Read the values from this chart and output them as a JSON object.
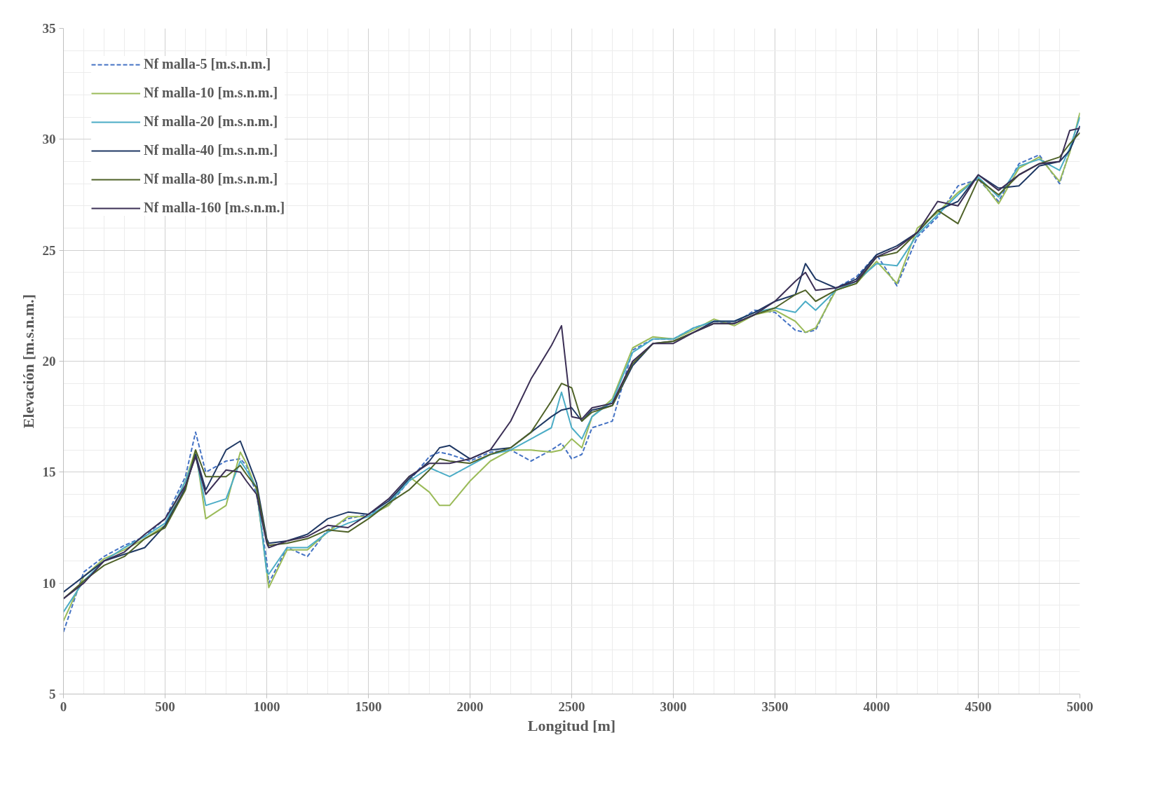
{
  "chart_data": {
    "type": "line",
    "xlabel": "Longitud [m]",
    "ylabel": "Elevación [m.s.n.m.]",
    "x": [
      0,
      100,
      200,
      300,
      400,
      500,
      600,
      650,
      700,
      800,
      870,
      900,
      950,
      1000,
      1010,
      1100,
      1200,
      1300,
      1400,
      1500,
      1600,
      1700,
      1800,
      1850,
      1900,
      2000,
      2100,
      2200,
      2300,
      2400,
      2450,
      2500,
      2550,
      2600,
      2700,
      2800,
      2900,
      3000,
      3100,
      3200,
      3300,
      3400,
      3500,
      3600,
      3650,
      3700,
      3800,
      3900,
      4000,
      4100,
      4200,
      4300,
      4400,
      4500,
      4600,
      4700,
      4800,
      4900,
      4950,
      5000
    ],
    "xlim": [
      0,
      5000
    ],
    "xticks": [
      0,
      500,
      1000,
      1500,
      2000,
      2500,
      3000,
      3500,
      4000,
      4500,
      5000
    ],
    "ylim": [
      5,
      35
    ],
    "yticks": [
      5,
      10,
      15,
      20,
      25,
      30,
      35
    ],
    "grid": true,
    "legend": "top left",
    "marker": "none",
    "series": [
      {
        "name": "Nf malla-5 [m.s.n.m.]",
        "color": "#4472c4",
        "line_style": "dashed",
        "values": [
          7.8,
          10.5,
          11.2,
          11.7,
          12.1,
          12.9,
          14.8,
          16.8,
          15.0,
          15.5,
          15.6,
          15.3,
          14.0,
          11.0,
          10.0,
          11.6,
          11.2,
          12.4,
          12.9,
          13.1,
          13.5,
          14.6,
          15.7,
          15.9,
          15.8,
          15.5,
          15.9,
          16.0,
          15.5,
          16.0,
          16.3,
          15.6,
          15.8,
          17.0,
          17.3,
          20.5,
          21.0,
          21.0,
          21.5,
          21.8,
          21.7,
          22.3,
          22.2,
          21.4,
          21.3,
          21.4,
          23.3,
          23.8,
          24.8,
          23.4,
          25.6,
          26.5,
          27.9,
          28.2,
          27.2,
          28.9,
          29.3,
          28.0,
          29.5,
          30.6
        ]
      },
      {
        "name": "Nf malla-10 [m.s.n.m.]",
        "color": "#9bbb59",
        "line_style": "solid",
        "values": [
          8.3,
          10.3,
          11.1,
          11.5,
          12.0,
          12.6,
          14.6,
          16.0,
          12.9,
          13.5,
          15.9,
          15.4,
          14.2,
          10.5,
          9.8,
          11.5,
          11.5,
          12.3,
          13.0,
          13.0,
          13.5,
          14.8,
          14.1,
          13.5,
          13.5,
          14.6,
          15.5,
          16.0,
          16.0,
          15.9,
          16.0,
          16.5,
          16.1,
          17.5,
          18.3,
          20.6,
          21.1,
          21.0,
          21.4,
          21.9,
          21.6,
          22.1,
          22.3,
          21.8,
          21.3,
          21.5,
          23.2,
          23.5,
          24.5,
          23.5,
          26.0,
          26.7,
          27.6,
          28.3,
          27.1,
          28.7,
          29.2,
          28.1,
          29.4,
          31.2
        ]
      },
      {
        "name": "Nf malla-20 [m.s.n.m.]",
        "color": "#4bacc6",
        "line_style": "solid",
        "values": [
          8.7,
          10.1,
          11.0,
          11.6,
          12.1,
          12.7,
          14.6,
          15.8,
          13.5,
          13.8,
          15.5,
          15.1,
          14.3,
          10.5,
          10.4,
          11.6,
          11.6,
          12.3,
          12.7,
          13.0,
          13.6,
          14.6,
          15.2,
          15.0,
          14.8,
          15.3,
          15.8,
          16.0,
          16.5,
          17.0,
          18.6,
          17.0,
          16.5,
          17.5,
          18.2,
          20.4,
          21.0,
          21.0,
          21.5,
          21.8,
          21.8,
          22.2,
          22.4,
          22.2,
          22.7,
          22.3,
          23.2,
          23.6,
          24.4,
          24.3,
          25.7,
          26.6,
          27.5,
          28.3,
          27.4,
          28.8,
          29.1,
          28.6,
          29.6,
          31.0
        ]
      },
      {
        "name": "Nf malla-40 [m.s.n.m.]",
        "color": "#1f3864",
        "line_style": "solid",
        "values": [
          9.6,
          10.3,
          11.0,
          11.3,
          11.6,
          12.6,
          14.3,
          15.8,
          14.2,
          16.0,
          16.4,
          15.7,
          14.5,
          12.0,
          11.8,
          11.9,
          12.2,
          12.9,
          13.2,
          13.1,
          13.7,
          14.7,
          15.5,
          16.1,
          16.2,
          15.6,
          16.0,
          16.1,
          16.8,
          17.5,
          17.8,
          17.9,
          17.3,
          17.8,
          18.0,
          19.8,
          20.8,
          20.9,
          21.3,
          21.8,
          21.8,
          22.2,
          22.7,
          23.0,
          24.4,
          23.7,
          23.3,
          23.7,
          24.8,
          25.2,
          25.8,
          26.8,
          27.2,
          28.4,
          27.8,
          27.9,
          28.8,
          29.0,
          29.5,
          30.6
        ]
      },
      {
        "name": "Nf malla-80 [m.s.n.m.]",
        "color": "#4f6228",
        "line_style": "solid",
        "values": [
          9.3,
          10.1,
          10.8,
          11.2,
          12.0,
          12.5,
          14.2,
          16.0,
          14.8,
          14.8,
          15.3,
          14.9,
          14.3,
          11.9,
          11.7,
          11.8,
          12.0,
          12.4,
          12.3,
          12.9,
          13.6,
          14.2,
          15.1,
          15.6,
          15.5,
          15.4,
          15.8,
          16.1,
          16.8,
          18.2,
          19.0,
          18.8,
          17.3,
          17.7,
          18.0,
          19.9,
          20.8,
          20.9,
          21.3,
          21.7,
          21.7,
          22.1,
          22.4,
          23.0,
          23.2,
          22.7,
          23.2,
          23.5,
          24.7,
          24.9,
          25.8,
          26.8,
          26.2,
          28.2,
          27.5,
          28.4,
          28.9,
          29.2,
          29.8,
          30.3
        ]
      },
      {
        "name": "Nf malla-160 [m.s.n.m.]",
        "color": "#3b2f55",
        "line_style": "solid",
        "values": [
          9.3,
          10.0,
          11.0,
          11.4,
          12.2,
          12.9,
          14.4,
          15.7,
          14.0,
          15.1,
          15.0,
          14.6,
          14.0,
          11.8,
          11.6,
          11.9,
          12.1,
          12.6,
          12.5,
          13.1,
          13.8,
          14.8,
          15.4,
          15.4,
          15.4,
          15.6,
          16.0,
          17.3,
          19.2,
          20.7,
          21.6,
          17.5,
          17.4,
          17.9,
          18.1,
          20.0,
          20.8,
          20.8,
          21.3,
          21.7,
          21.7,
          22.1,
          22.7,
          23.6,
          24.0,
          23.2,
          23.3,
          23.6,
          24.7,
          25.1,
          25.8,
          27.2,
          27.0,
          28.4,
          27.7,
          28.4,
          28.9,
          29.0,
          30.4,
          30.5
        ]
      }
    ]
  }
}
